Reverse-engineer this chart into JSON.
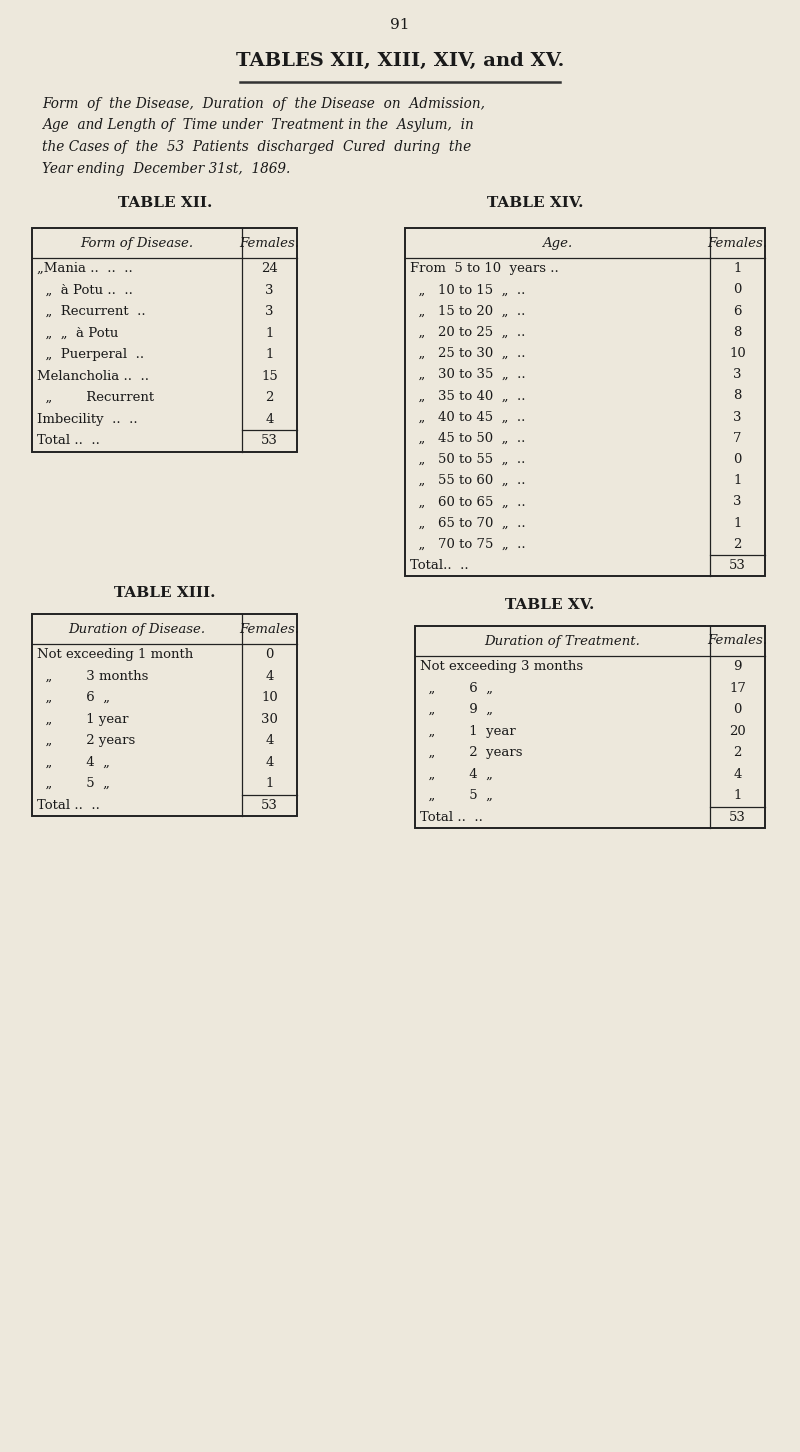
{
  "page_number": "91",
  "main_title": "TABLES XII, XIII, XIV, and XV.",
  "subtitle_lines": [
    "Form  of  the Disease,  Duration  of  the Disease  on  Admission,",
    "Age  and Length of  Time under  Treatment in the  Asylum,  in",
    "the Cases of  the  53  Patients  discharged  Cured  during  the",
    "Year ending  December 31st,  1869."
  ],
  "bg_color": "#ede8dc",
  "text_color": "#1a1a1a",
  "table12": {
    "title": "TABLE XII.",
    "col1_header": "Form of Disease.",
    "col2_header": "Females.",
    "rows": [
      [
        "„Mania ..  ..  ..",
        "24"
      ],
      [
        "  „  à Potu ..  ..",
        "3"
      ],
      [
        "  „  Recurrent  ..",
        "3"
      ],
      [
        "  „  „  à Potu",
        "1"
      ],
      [
        "  „  Puerperal  ..",
        "1"
      ],
      [
        "Melancholia ..  ..",
        "15"
      ],
      [
        "  „        Recurrent",
        "2"
      ],
      [
        "Imbecility  ..  ..",
        "4"
      ],
      [
        "Total ..  ..",
        "53"
      ]
    ],
    "total_row_idx": 8
  },
  "table13": {
    "title": "TABLE XIII.",
    "col1_header": "Duration of Disease.",
    "col2_header": "Females.",
    "rows": [
      [
        "Not exceeding 1 month",
        "0"
      ],
      [
        "  „        3 months",
        "4"
      ],
      [
        "  „        6  „",
        "10"
      ],
      [
        "  „        1 year",
        "30"
      ],
      [
        "  „        2 years",
        "4"
      ],
      [
        "  „        4  „",
        "4"
      ],
      [
        "  „        5  „",
        "1"
      ],
      [
        "Total ..  ..",
        "53"
      ]
    ],
    "total_row_idx": 7
  },
  "table14": {
    "title": "TABLE XIV.",
    "col1_header": "Age.",
    "col2_header": "Females.",
    "rows": [
      [
        "From  5 to 10  years ..",
        "1"
      ],
      [
        "  „   10 to 15  „  ..",
        "0"
      ],
      [
        "  „   15 to 20  „  ..",
        "6"
      ],
      [
        "  „   20 to 25  „  ..",
        "8"
      ],
      [
        "  „   25 to 30  „  ..",
        "10"
      ],
      [
        "  „   30 to 35  „  ..",
        "3"
      ],
      [
        "  „   35 to 40  „  ..",
        "8"
      ],
      [
        "  „   40 to 45  „  ..",
        "3"
      ],
      [
        "  „   45 to 50  „  ..",
        "7"
      ],
      [
        "  „   50 to 55  „  ..",
        "0"
      ],
      [
        "  „   55 to 60  „  ..",
        "1"
      ],
      [
        "  „   60 to 65  „  ..",
        "3"
      ],
      [
        "  „   65 to 70  „  ..",
        "1"
      ],
      [
        "  „   70 to 75  „  ..",
        "2"
      ],
      [
        "Total..  ..",
        "53"
      ]
    ],
    "total_row_idx": 14
  },
  "table15": {
    "title": "TABLE XV.",
    "col1_header": "Duration of Treatment.",
    "col2_header": "Females.",
    "rows": [
      [
        "Not exceeding 3 months",
        "9"
      ],
      [
        "  „        6  „",
        "17"
      ],
      [
        "  „        9  „",
        "0"
      ],
      [
        "  „        1  year",
        "20"
      ],
      [
        "  „        2  years",
        "2"
      ],
      [
        "  „        4  „",
        "4"
      ],
      [
        "  „        5  „",
        "1"
      ],
      [
        "Total ..  ..",
        "53"
      ]
    ],
    "total_row_idx": 7
  },
  "layout": {
    "fig_w": 8.0,
    "fig_h": 14.52,
    "dpi": 100
  }
}
